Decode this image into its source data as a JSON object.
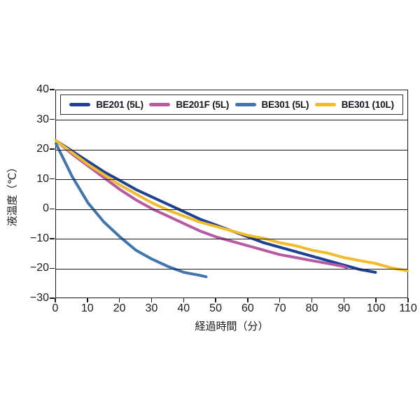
{
  "chart_data": {
    "type": "line",
    "title": "",
    "xlabel": "経過時間（分）",
    "ylabel": "液温度（℃）",
    "xlim": [
      0,
      110
    ],
    "ylim": [
      -30,
      40
    ],
    "x_ticks": [
      0,
      10,
      20,
      30,
      40,
      50,
      60,
      70,
      80,
      90,
      100,
      110
    ],
    "y_ticks": [
      40,
      30,
      20,
      10,
      0,
      -10,
      -20,
      -30
    ],
    "grid": "horizontal-only",
    "legend_position": "top-inside-framed",
    "axis_color": "#1a1a1a",
    "series": [
      {
        "name": "BE201 (5L)",
        "color": "#1d4293",
        "points": [
          [
            0,
            23
          ],
          [
            5,
            19.5
          ],
          [
            10,
            16
          ],
          [
            15,
            12.5
          ],
          [
            20,
            9.5
          ],
          [
            25,
            6.5
          ],
          [
            30,
            4
          ],
          [
            35,
            1.5
          ],
          [
            40,
            -1
          ],
          [
            45,
            -3.5
          ],
          [
            50,
            -5.5
          ],
          [
            55,
            -7.5
          ],
          [
            60,
            -9.5
          ],
          [
            65,
            -11.5
          ],
          [
            70,
            -13
          ],
          [
            75,
            -14.5
          ],
          [
            80,
            -16
          ],
          [
            85,
            -17.5
          ],
          [
            90,
            -19
          ],
          [
            95,
            -20.5
          ],
          [
            100,
            -21.5
          ]
        ]
      },
      {
        "name": "BE201F (5L)",
        "color": "#b65ba3",
        "points": [
          [
            0,
            23
          ],
          [
            5,
            18.5
          ],
          [
            10,
            14.5
          ],
          [
            15,
            10.5
          ],
          [
            20,
            6.5
          ],
          [
            25,
            3
          ],
          [
            30,
            0
          ],
          [
            35,
            -2.5
          ],
          [
            40,
            -5
          ],
          [
            45,
            -7.5
          ],
          [
            50,
            -9.5
          ],
          [
            55,
            -11
          ],
          [
            60,
            -12.5
          ],
          [
            65,
            -14
          ],
          [
            70,
            -15.5
          ],
          [
            75,
            -16.5
          ],
          [
            80,
            -17.5
          ],
          [
            85,
            -18.5
          ],
          [
            90,
            -19.5
          ],
          [
            91,
            -20
          ]
        ]
      },
      {
        "name": "BE301 (5L)",
        "color": "#4274ae",
        "points": [
          [
            0,
            22
          ],
          [
            5,
            11
          ],
          [
            10,
            2
          ],
          [
            15,
            -4.5
          ],
          [
            20,
            -9.5
          ],
          [
            25,
            -14
          ],
          [
            30,
            -17
          ],
          [
            35,
            -19.5
          ],
          [
            40,
            -21.5
          ],
          [
            45,
            -22.5
          ],
          [
            47,
            -23
          ]
        ]
      },
      {
        "name": "BE301 (10L)",
        "color": "#f2bb2a",
        "points": [
          [
            0,
            23
          ],
          [
            5,
            19
          ],
          [
            10,
            15
          ],
          [
            15,
            11.5
          ],
          [
            20,
            8
          ],
          [
            25,
            5
          ],
          [
            30,
            2
          ],
          [
            35,
            -0.5
          ],
          [
            40,
            -2.5
          ],
          [
            45,
            -4.5
          ],
          [
            50,
            -6
          ],
          [
            55,
            -7.5
          ],
          [
            60,
            -9
          ],
          [
            65,
            -10
          ],
          [
            70,
            -11.5
          ],
          [
            75,
            -12.5
          ],
          [
            80,
            -14
          ],
          [
            85,
            -15
          ],
          [
            90,
            -16.5
          ],
          [
            95,
            -17.5
          ],
          [
            100,
            -18.5
          ],
          [
            105,
            -20
          ],
          [
            110,
            -21
          ]
        ]
      }
    ]
  }
}
